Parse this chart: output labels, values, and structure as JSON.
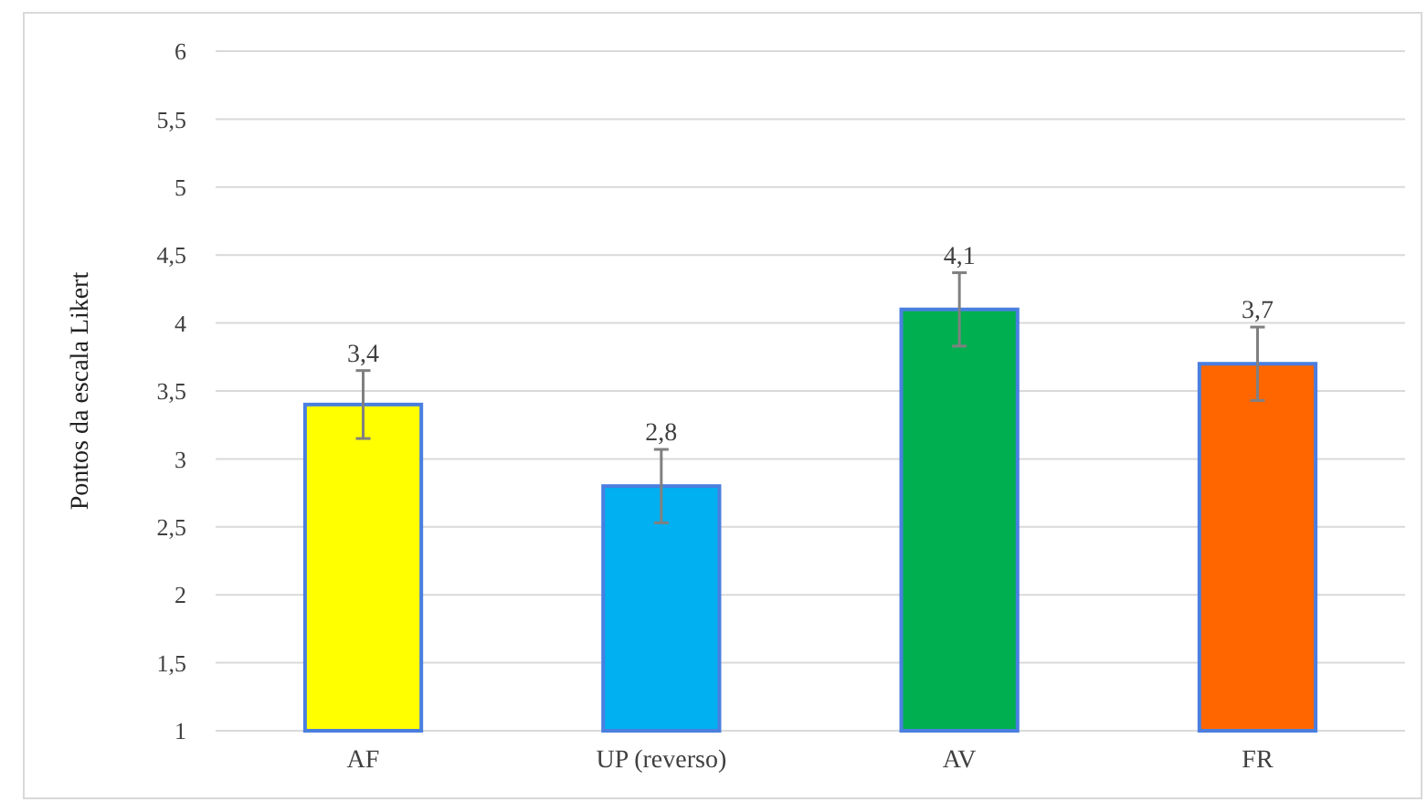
{
  "chart_data": {
    "type": "bar",
    "ylabel": "Pontos da escala Likert",
    "categories": [
      "AF",
      "UP (reverso)",
      "AV",
      "FR"
    ],
    "values": [
      3.4,
      2.8,
      4.1,
      3.7
    ],
    "colors": [
      "#ffff00",
      "#00b0f0",
      "#00b050",
      "#ff6600"
    ],
    "errors": [
      0.25,
      0.27,
      0.27,
      0.27
    ],
    "value_labels": [
      "3,4",
      "2,8",
      "4,1",
      "3,7"
    ],
    "ylim": [
      1,
      6
    ],
    "yticks": [
      1,
      {
        "value": 1.5,
        "label": "1,5"
      },
      2,
      {
        "value": 2.5,
        "label": "2,5"
      },
      3,
      {
        "value": 3.5,
        "label": "3,5"
      },
      4,
      {
        "value": 4.5,
        "label": "4,5"
      },
      5,
      {
        "value": 5.5,
        "label": "5,5"
      },
      6
    ],
    "grid": "y"
  }
}
